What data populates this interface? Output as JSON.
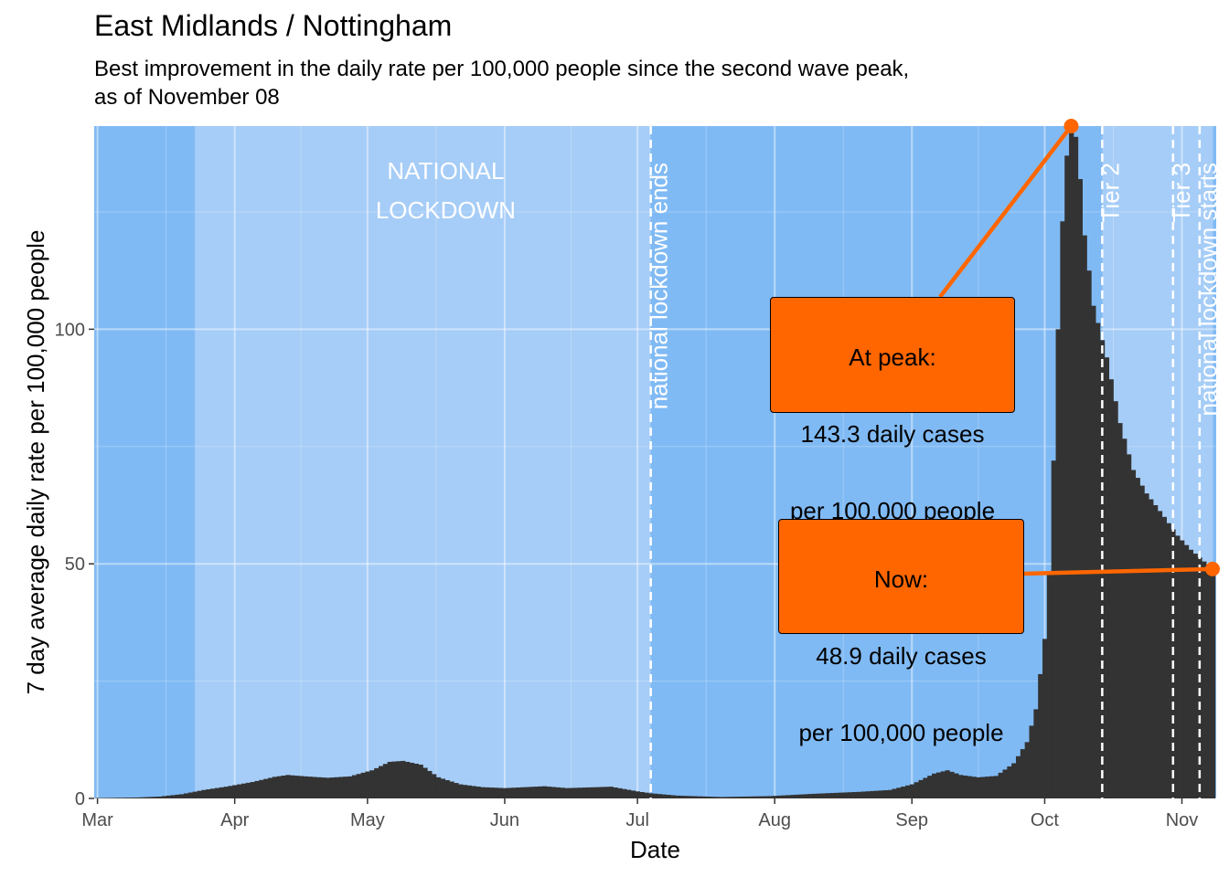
{
  "title": "East Midlands / Nottingham",
  "subtitle": "Best improvement in the daily rate per 100,000 people since the second wave peak,\nas of November 08",
  "colors": {
    "bg_dark": "#80baf4",
    "bg_light": "#a6cdf7",
    "bars": "#333333",
    "accent": "#ff6600",
    "vline": "#ffffff"
  },
  "chart_data": {
    "type": "bar",
    "xlabel": "Date",
    "ylabel": "7 day average daily rate per 100,000 people",
    "x_start": "2020-03-01",
    "x_end": "2020-11-08",
    "ylim": [
      0,
      143.3
    ],
    "y_ticks": [
      0,
      50,
      100
    ],
    "x_ticks": [
      {
        "date": "2020-03-01",
        "label": "Mar"
      },
      {
        "date": "2020-04-01",
        "label": "Apr"
      },
      {
        "date": "2020-05-01",
        "label": "May"
      },
      {
        "date": "2020-06-01",
        "label": "Jun"
      },
      {
        "date": "2020-07-01",
        "label": "Jul"
      },
      {
        "date": "2020-08-01",
        "label": "Aug"
      },
      {
        "date": "2020-09-01",
        "label": "Sep"
      },
      {
        "date": "2020-10-01",
        "label": "Oct"
      },
      {
        "date": "2020-11-01",
        "label": "Nov"
      }
    ],
    "periods": [
      {
        "start": "2020-03-23",
        "end": "2020-07-04",
        "label": "NATIONAL\nLOCKDOWN"
      },
      {
        "start": "2020-10-14",
        "end": "2020-11-08",
        "label": ""
      }
    ],
    "events": [
      {
        "date": "2020-07-04",
        "label": "national lockdown ends"
      },
      {
        "date": "2020-10-14",
        "label": "Tier 2"
      },
      {
        "date": "2020-10-30",
        "label": "Tier 3"
      },
      {
        "date": "2020-11-05",
        "label": "national lockdown starts"
      }
    ],
    "key_points": {
      "peak": {
        "date": "2020-10-07",
        "value": 143.3
      },
      "now": {
        "date": "2020-11-08",
        "value": 48.9
      }
    },
    "series_anchors": [
      [
        "2020-03-01",
        0.1
      ],
      [
        "2020-03-10",
        0.2
      ],
      [
        "2020-03-15",
        0.4
      ],
      [
        "2020-03-20",
        0.9
      ],
      [
        "2020-03-25",
        1.8
      ],
      [
        "2020-03-30",
        2.5
      ],
      [
        "2020-04-05",
        3.5
      ],
      [
        "2020-04-10",
        4.6
      ],
      [
        "2020-04-13",
        5.0
      ],
      [
        "2020-04-17",
        4.7
      ],
      [
        "2020-04-22",
        4.4
      ],
      [
        "2020-04-27",
        4.7
      ],
      [
        "2020-05-02",
        6.0
      ],
      [
        "2020-05-06",
        7.8
      ],
      [
        "2020-05-09",
        8.0
      ],
      [
        "2020-05-13",
        7.2
      ],
      [
        "2020-05-17",
        4.5
      ],
      [
        "2020-05-22",
        3.0
      ],
      [
        "2020-05-27",
        2.4
      ],
      [
        "2020-06-01",
        2.2
      ],
      [
        "2020-06-10",
        2.6
      ],
      [
        "2020-06-15",
        2.2
      ],
      [
        "2020-06-25",
        2.5
      ],
      [
        "2020-07-01",
        1.5
      ],
      [
        "2020-07-04",
        1.1
      ],
      [
        "2020-07-10",
        0.6
      ],
      [
        "2020-07-20",
        0.3
      ],
      [
        "2020-07-31",
        0.5
      ],
      [
        "2020-08-10",
        1.0
      ],
      [
        "2020-08-20",
        1.4
      ],
      [
        "2020-08-27",
        1.8
      ],
      [
        "2020-09-01",
        3.0
      ],
      [
        "2020-09-06",
        5.3
      ],
      [
        "2020-09-09",
        6.0
      ],
      [
        "2020-09-12",
        5.0
      ],
      [
        "2020-09-16",
        4.5
      ],
      [
        "2020-09-20",
        4.8
      ],
      [
        "2020-09-24",
        7.5
      ],
      [
        "2020-09-27",
        12.0
      ],
      [
        "2020-09-29",
        19.0
      ],
      [
        "2020-10-01",
        34.0
      ],
      [
        "2020-10-02",
        48.0
      ],
      [
        "2020-10-03",
        72.0
      ],
      [
        "2020-10-04",
        100.0
      ],
      [
        "2020-10-05",
        123.0
      ],
      [
        "2020-10-06",
        137.0
      ],
      [
        "2020-10-07",
        143.3
      ],
      [
        "2020-10-08",
        141.0
      ],
      [
        "2020-10-09",
        132.0
      ],
      [
        "2020-10-10",
        120.0
      ],
      [
        "2020-10-12",
        105.0
      ],
      [
        "2020-10-15",
        94.0
      ],
      [
        "2020-10-18",
        80.0
      ],
      [
        "2020-10-21",
        70.0
      ],
      [
        "2020-10-24",
        65.0
      ],
      [
        "2020-10-28",
        60.0
      ],
      [
        "2020-10-31",
        56.0
      ],
      [
        "2020-11-03",
        53.0
      ],
      [
        "2020-11-06",
        50.5
      ],
      [
        "2020-11-08",
        48.9
      ]
    ],
    "annotations": [
      {
        "target": "peak",
        "lines": [
          "At peak:",
          "143.3 daily cases",
          "per 100,000 people"
        ]
      },
      {
        "target": "now",
        "lines": [
          "Now:",
          "48.9 daily cases",
          "per 100,000 people"
        ]
      }
    ]
  }
}
